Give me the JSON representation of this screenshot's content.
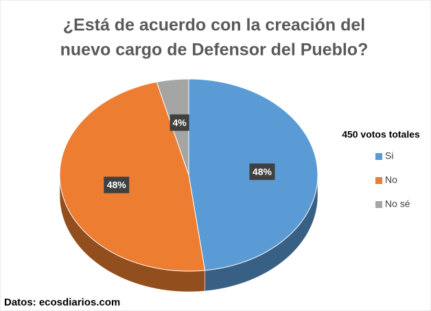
{
  "chart_data": {
    "type": "pie",
    "title": [
      "¿Está de acuerdo con la creación del",
      "nuevo cargo de Defensor del Pueblo?"
    ],
    "legend_title": "450 votos totales",
    "categories": [
      "Si",
      "No",
      "No sé"
    ],
    "values": [
      48,
      48,
      4
    ],
    "value_labels": [
      "48%",
      "48%",
      "4%"
    ],
    "colors": [
      "#5b9bd5",
      "#ed7d31",
      "#a5a5a5"
    ],
    "legend": "right",
    "source": "Datos: ecosdiarios.com"
  }
}
